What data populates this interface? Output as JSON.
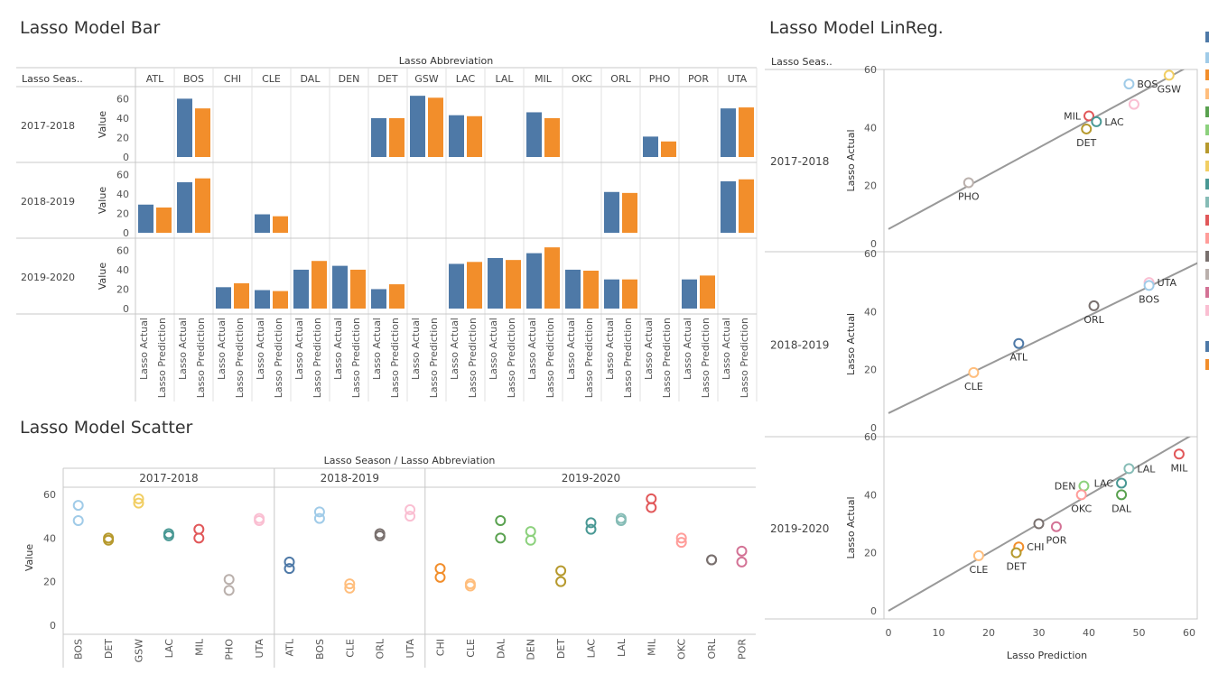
{
  "titles": {
    "bar": "Lasso Model Bar",
    "linreg": "Lasso Model LinReg.",
    "scatter": "Lasso Model Scatter"
  },
  "colors": {
    "actual": "#4e79a7",
    "prediction": "#f28e2b",
    "grid": "#c8c8c8",
    "trend": "#999999"
  },
  "bar_chart": {
    "column_header": "Lasso Abbreviation",
    "row_header": "Lasso Seas..",
    "value_label": "Value",
    "measure_labels": [
      "Lasso Actual",
      "Lasso Prediction"
    ]
  },
  "scatter_chart": {
    "header": "Lasso Season / Lasso Abbreviation",
    "value_label": "Value"
  },
  "linreg_chart": {
    "row_header": "Lasso Seas..",
    "ylabel": "Lasso Actual",
    "xlabel": "Lasso Prediction"
  },
  "chart_data": [
    {
      "type": "bar",
      "title": "Lasso Model Bar",
      "ylabel": "Value",
      "xlabel": "Lasso Abbreviation",
      "ylim": [
        0,
        65
      ],
      "yticks": [
        0,
        20,
        40,
        60
      ],
      "categories": [
        "ATL",
        "BOS",
        "CHI",
        "CLE",
        "DAL",
        "DEN",
        "DET",
        "GSW",
        "LAC",
        "LAL",
        "MIL",
        "OKC",
        "ORL",
        "PHO",
        "POR",
        "UTA"
      ],
      "rows": [
        {
          "season": "2017-2018",
          "series": [
            {
              "name": "Lasso Actual",
              "values": [
                null,
                60,
                null,
                null,
                null,
                null,
                40,
                63,
                43,
                null,
                46,
                null,
                null,
                21,
                null,
                50
              ]
            },
            {
              "name": "Lasso Prediction",
              "values": [
                null,
                50,
                null,
                null,
                null,
                null,
                40,
                61,
                42,
                null,
                40,
                null,
                null,
                16,
                null,
                51
              ]
            }
          ]
        },
        {
          "season": "2018-2019",
          "series": [
            {
              "name": "Lasso Actual",
              "values": [
                29,
                52,
                null,
                19,
                null,
                null,
                null,
                null,
                null,
                null,
                null,
                null,
                42,
                null,
                null,
                53
              ]
            },
            {
              "name": "Lasso Prediction",
              "values": [
                26,
                56,
                null,
                17,
                null,
                null,
                null,
                null,
                null,
                null,
                null,
                null,
                41,
                null,
                null,
                55
              ]
            }
          ]
        },
        {
          "season": "2019-2020",
          "series": [
            {
              "name": "Lasso Actual",
              "values": [
                null,
                null,
                22,
                19,
                40,
                44,
                20,
                null,
                46,
                52,
                57,
                40,
                30,
                null,
                30,
                null
              ]
            },
            {
              "name": "Lasso Prediction",
              "values": [
                null,
                null,
                26,
                18,
                49,
                40,
                25,
                null,
                48,
                50,
                63,
                39,
                30,
                null,
                34,
                null
              ]
            }
          ]
        }
      ]
    },
    {
      "type": "scatter",
      "title": "Lasso Model Scatter",
      "ylabel": "Value",
      "ylim": [
        0,
        62
      ],
      "yticks": [
        0,
        20,
        40,
        60
      ],
      "groups": [
        {
          "season": "2017-2018",
          "teams": [
            {
              "abbr": "BOS",
              "actual": 55,
              "prediction": 48,
              "color": "#a0cbe8"
            },
            {
              "abbr": "DET",
              "actual": 40,
              "prediction": 39,
              "color": "#b6992d"
            },
            {
              "abbr": "GSW",
              "actual": 58,
              "prediction": 56,
              "color": "#f1ce63"
            },
            {
              "abbr": "LAC",
              "actual": 42,
              "prediction": 41,
              "color": "#499894"
            },
            {
              "abbr": "MIL",
              "actual": 44,
              "prediction": 40,
              "color": "#e15759"
            },
            {
              "abbr": "PHO",
              "actual": 21,
              "prediction": 16,
              "color": "#bab0ac"
            },
            {
              "abbr": "UTA",
              "actual": 49,
              "prediction": 48,
              "color": "#fabfd2"
            }
          ]
        },
        {
          "season": "2018-2019",
          "teams": [
            {
              "abbr": "ATL",
              "actual": 29,
              "prediction": 26,
              "color": "#4e79a7"
            },
            {
              "abbr": "BOS",
              "actual": 52,
              "prediction": 49,
              "color": "#a0cbe8"
            },
            {
              "abbr": "CLE",
              "actual": 19,
              "prediction": 17,
              "color": "#ffbe7d"
            },
            {
              "abbr": "ORL",
              "actual": 42,
              "prediction": 41,
              "color": "#79706e"
            },
            {
              "abbr": "UTA",
              "actual": 53,
              "prediction": 50,
              "color": "#fabfd2"
            }
          ]
        },
        {
          "season": "2019-2020",
          "teams": [
            {
              "abbr": "CHI",
              "actual": 26,
              "prediction": 22,
              "color": "#f28e2b"
            },
            {
              "abbr": "CLE",
              "actual": 19,
              "prediction": 18,
              "color": "#ffbe7d"
            },
            {
              "abbr": "DAL",
              "actual": 48,
              "prediction": 40,
              "color": "#59a14f"
            },
            {
              "abbr": "DEN",
              "actual": 43,
              "prediction": 39,
              "color": "#8cd17d"
            },
            {
              "abbr": "DET",
              "actual": 25,
              "prediction": 20,
              "color": "#b6992d"
            },
            {
              "abbr": "LAC",
              "actual": 47,
              "prediction": 44,
              "color": "#499894"
            },
            {
              "abbr": "LAL",
              "actual": 49,
              "prediction": 48,
              "color": "#86bcb6"
            },
            {
              "abbr": "MIL",
              "actual": 58,
              "prediction": 54,
              "color": "#e15759"
            },
            {
              "abbr": "OKC",
              "actual": 40,
              "prediction": 38,
              "color": "#ff9d9a"
            },
            {
              "abbr": "ORL",
              "actual": 30,
              "prediction": 30,
              "color": "#79706e"
            },
            {
              "abbr": "POR",
              "actual": 34,
              "prediction": 29,
              "color": "#d37295"
            }
          ]
        }
      ]
    },
    {
      "type": "scatter",
      "title": "Lasso Model LinReg.",
      "xlabel": "Lasso Prediction",
      "ylabel": "Lasso Actual",
      "xlim": [
        0,
        62
      ],
      "ylim": [
        0,
        62
      ],
      "xticks": [
        0,
        10,
        20,
        30,
        40,
        50,
        60
      ],
      "yticks": [
        0,
        20,
        40,
        60
      ],
      "panels": [
        {
          "season": "2017-2018",
          "trend": [
            [
              0,
              5
            ],
            [
              62,
              63
            ]
          ],
          "points": [
            {
              "label": "BOS",
              "x": 48,
              "y": 55,
              "color": "#a0cbe8",
              "anchor": "right"
            },
            {
              "label": "GSW",
              "x": 56,
              "y": 58,
              "color": "#f1ce63",
              "anchor": "below"
            },
            {
              "label": "",
              "x": 49,
              "y": 48,
              "color": "#fabfd2",
              "anchor": "none"
            },
            {
              "label": "MIL",
              "x": 40,
              "y": 44,
              "color": "#e15759",
              "anchor": "left"
            },
            {
              "label": "LAC",
              "x": 41.5,
              "y": 42,
              "color": "#499894",
              "anchor": "right"
            },
            {
              "label": "DET",
              "x": 39.5,
              "y": 39.5,
              "color": "#b6992d",
              "anchor": "below"
            },
            {
              "label": "PHO",
              "x": 16,
              "y": 21,
              "color": "#bab0ac",
              "anchor": "below"
            }
          ]
        },
        {
          "season": "2018-2019",
          "trend": [
            [
              0,
              5
            ],
            [
              62,
              57
            ]
          ],
          "points": [
            {
              "label": "UTA",
              "x": 52,
              "y": 50,
              "color": "#fabfd2",
              "anchor": "right"
            },
            {
              "label": "BOS",
              "x": 52,
              "y": 49,
              "color": "#a0cbe8",
              "anchor": "below"
            },
            {
              "label": "ORL",
              "x": 41,
              "y": 42,
              "color": "#79706e",
              "anchor": "below"
            },
            {
              "label": "ATL",
              "x": 26,
              "y": 29,
              "color": "#4e79a7",
              "anchor": "below"
            },
            {
              "label": "CLE",
              "x": 17,
              "y": 19,
              "color": "#ffbe7d",
              "anchor": "below"
            }
          ]
        },
        {
          "season": "2019-2020",
          "trend": [
            [
              0,
              0
            ],
            [
              62,
              62
            ]
          ],
          "points": [
            {
              "label": "LAL",
              "x": 48,
              "y": 49,
              "color": "#86bcb6",
              "anchor": "right"
            },
            {
              "label": "MIL",
              "x": 58,
              "y": 54,
              "color": "#e15759",
              "anchor": "below"
            },
            {
              "label": "DEN",
              "x": 39,
              "y": 43,
              "color": "#8cd17d",
              "anchor": "left"
            },
            {
              "label": "LAC",
              "x": 46.5,
              "y": 44,
              "color": "#499894",
              "anchor": "left"
            },
            {
              "label": "OKC",
              "x": 38.5,
              "y": 40,
              "color": "#ff9d9a",
              "anchor": "below"
            },
            {
              "label": "DAL",
              "x": 46.5,
              "y": 40,
              "color": "#59a14f",
              "anchor": "below"
            },
            {
              "label": "",
              "x": 30,
              "y": 30,
              "color": "#79706e",
              "anchor": "none"
            },
            {
              "label": "POR",
              "x": 33.5,
              "y": 29,
              "color": "#d37295",
              "anchor": "below"
            },
            {
              "label": "CHI",
              "x": 26,
              "y": 22,
              "color": "#f28e2b",
              "anchor": "right"
            },
            {
              "label": "DET",
              "x": 25.5,
              "y": 20,
              "color": "#b6992d",
              "anchor": "below"
            },
            {
              "label": "CLE",
              "x": 18,
              "y": 19,
              "color": "#ffbe7d",
              "anchor": "below"
            }
          ]
        }
      ]
    }
  ],
  "legend_colors": [
    "#4e79a7",
    "#a0cbe8",
    "#f28e2b",
    "#ffbe7d",
    "#59a14f",
    "#8cd17d",
    "#b6992d",
    "#f1ce63",
    "#499894",
    "#86bcb6",
    "#e15759",
    "#ff9d9a",
    "#79706e",
    "#bab0ac",
    "#d37295",
    "#fabfd2",
    "#4e79a7",
    "#f28e2b"
  ]
}
